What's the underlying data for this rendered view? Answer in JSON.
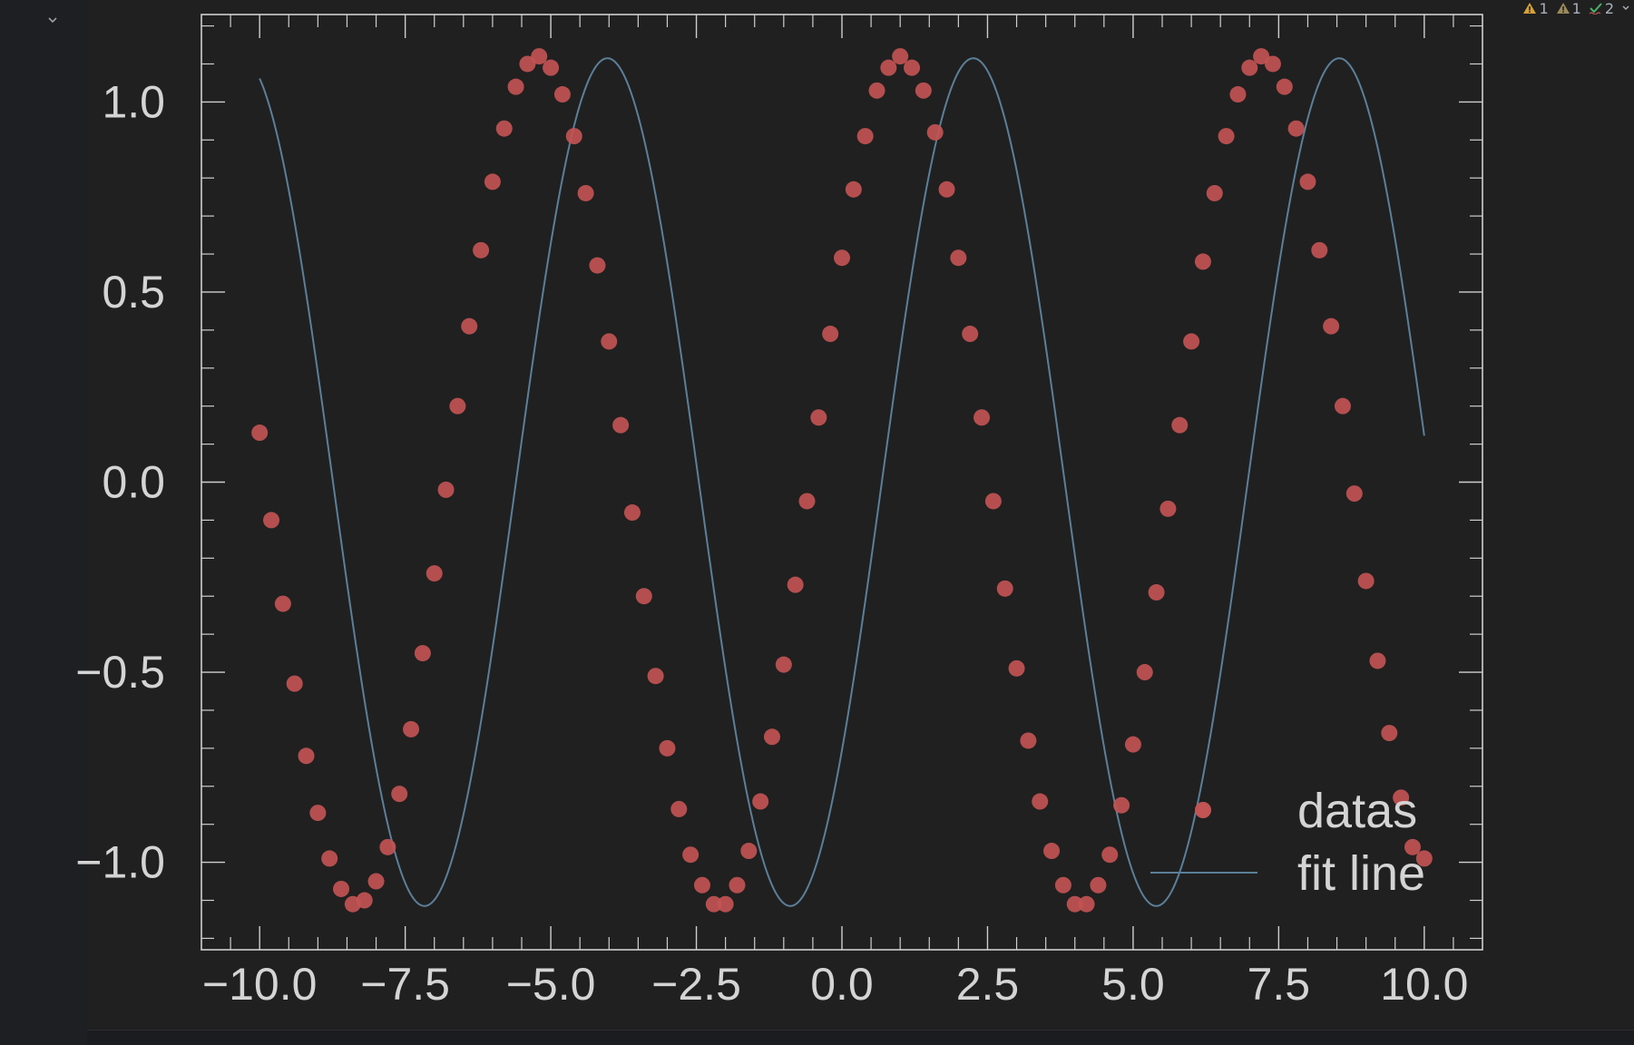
{
  "inspections": {
    "errors": "1",
    "warnings": "1",
    "typos": "2"
  },
  "icons": {
    "collapse": "chevron-down-icon",
    "error": "error-triangle-icon",
    "warning": "warning-triangle-icon",
    "typo": "typo-check-icon",
    "more": "chevron-down-icon"
  },
  "colors": {
    "background": "#202020",
    "axes": "#cfcfcf",
    "points": "#c25454",
    "line": "#5c7f99",
    "text": "#d4d4d4"
  },
  "chart_data": {
    "type": "scatter",
    "title": "",
    "xlabel": "",
    "ylabel": "",
    "xlim": [
      -11.0,
      11.0
    ],
    "ylim": [
      -1.23,
      1.23
    ],
    "x_ticks": [
      "−10.0",
      "−7.5",
      "−5.0",
      "−2.5",
      "0.0",
      "2.5",
      "5.0",
      "7.5",
      "10.0"
    ],
    "x_tick_values": [
      -10,
      -7.5,
      -5,
      -2.5,
      0,
      2.5,
      5,
      7.5,
      10
    ],
    "y_ticks": [
      "−1.0",
      "−0.5",
      "0.0",
      "0.5",
      "1.0"
    ],
    "y_tick_values": [
      -1,
      -0.5,
      0,
      0.5,
      1
    ],
    "legend_position": "bottom-right",
    "grid": false,
    "series": [
      {
        "name": "datas",
        "kind": "scatter",
        "color": "#c25454",
        "x_start": -10,
        "x_end": 10,
        "count": 101,
        "y": [
          0.13,
          -0.1,
          -0.32,
          -0.53,
          -0.72,
          -0.87,
          -0.99,
          -1.07,
          -1.11,
          -1.1,
          -1.05,
          -0.96,
          -0.82,
          -0.65,
          -0.45,
          -0.24,
          -0.02,
          0.2,
          0.41,
          0.61,
          0.79,
          0.93,
          1.04,
          1.1,
          1.12,
          1.09,
          1.02,
          0.91,
          0.76,
          0.57,
          0.37,
          0.15,
          -0.08,
          -0.3,
          -0.51,
          -0.7,
          -0.86,
          -0.98,
          -1.06,
          -1.11,
          -1.11,
          -1.06,
          -0.97,
          -0.84,
          -0.67,
          -0.48,
          -0.27,
          -0.05,
          0.17,
          0.39,
          0.59,
          0.77,
          0.91,
          1.03,
          1.09,
          1.12,
          1.09,
          1.03,
          0.92,
          0.77,
          0.59,
          0.39,
          0.17,
          -0.05,
          -0.28,
          -0.49,
          -0.68,
          -0.84,
          -0.97,
          -1.06,
          -1.11,
          -1.11,
          -1.06,
          -0.98,
          -0.85,
          -0.69,
          -0.5,
          -0.29,
          -0.07,
          0.15,
          0.37,
          0.58,
          0.76,
          0.91,
          1.02,
          1.09,
          1.12,
          1.1,
          1.04,
          0.93,
          0.79,
          0.61,
          0.41,
          0.2,
          -0.03,
          -0.26,
          -0.47,
          -0.66,
          -0.83,
          -0.96,
          -0.99
        ]
      },
      {
        "name": "fit line",
        "kind": "line",
        "color": "#5c7f99",
        "model": "a*sin(b*x+c)",
        "params": {
          "a": 1.115,
          "b": 1.0,
          "c": -0.6848
        },
        "x_range": [
          -10,
          10
        ]
      }
    ]
  }
}
